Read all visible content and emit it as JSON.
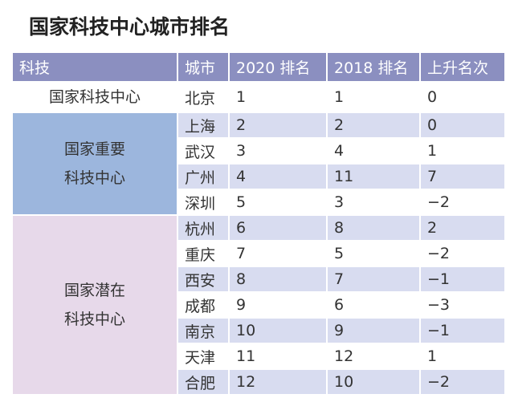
{
  "title": "国家科技中心城市排名",
  "table": {
    "header": [
      "科技",
      "城市",
      "2020 排名",
      "2018 排名",
      "上升名次"
    ],
    "groups": [
      {
        "label": [
          "国家科技中心"
        ],
        "rows": [
          [
            "北京",
            1,
            1,
            0
          ]
        ]
      },
      {
        "label": [
          "国家重要",
          "科技中心"
        ],
        "rows": [
          [
            "上海",
            2,
            2,
            0
          ],
          [
            "武汉",
            3,
            4,
            1
          ],
          [
            "广州",
            4,
            11,
            7
          ],
          [
            "深圳",
            5,
            3,
            "−2"
          ]
        ]
      },
      {
        "label": [
          "国家潜在",
          "科技中心"
        ],
        "rows": [
          [
            "杭州",
            6,
            8,
            2
          ],
          [
            "重庆",
            7,
            5,
            "−2"
          ],
          [
            "西安",
            8,
            7,
            "−1"
          ],
          [
            "成都",
            9,
            6,
            "−3"
          ],
          [
            "南京",
            10,
            9,
            "−1"
          ],
          [
            "天津",
            11,
            12,
            1
          ],
          [
            "合肥",
            12,
            10,
            "−2"
          ]
        ]
      }
    ]
  }
}
